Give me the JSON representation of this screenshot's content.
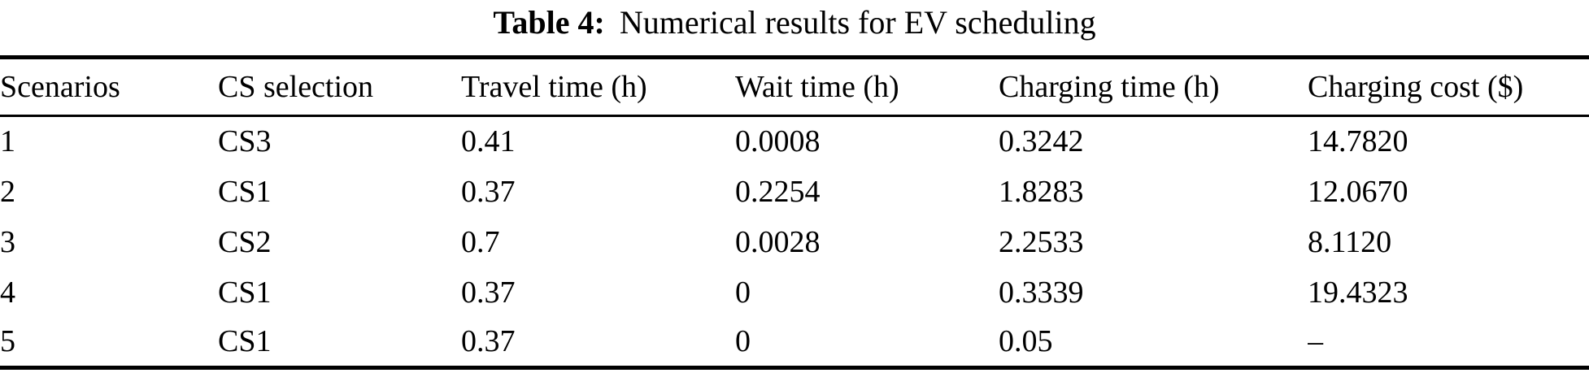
{
  "caption": {
    "label": "Table 4:",
    "text": "Numerical results for EV scheduling"
  },
  "table": {
    "columns": [
      "Scenarios",
      "CS selection",
      "Travel time (h)",
      "Wait time (h)",
      "Charging time (h)",
      "Charging cost ($)"
    ],
    "rows": [
      [
        "1",
        "CS3",
        "0.41",
        "0.0008",
        "0.3242",
        "14.7820"
      ],
      [
        "2",
        "CS1",
        "0.37",
        "0.2254",
        "1.8283",
        "12.0670"
      ],
      [
        "3",
        "CS2",
        "0.7",
        "0.0028",
        "2.2533",
        "8.1120"
      ],
      [
        "4",
        "CS1",
        "0.37",
        "0",
        "0.3339",
        "19.4323"
      ],
      [
        "5",
        "CS1",
        "0.37",
        "0",
        "0.05",
        "–"
      ]
    ]
  },
  "colors": {
    "text": "#000000",
    "background": "#ffffff",
    "rule": "#000000"
  }
}
